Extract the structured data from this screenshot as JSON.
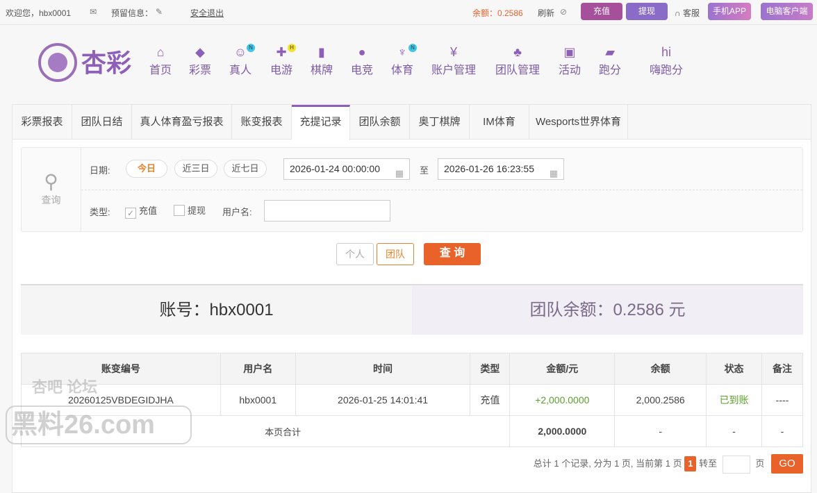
{
  "topbar": {
    "welcome": "欢迎您，hbx0001",
    "reserved_info": "预留信息：",
    "logout": "安全退出",
    "balance": "余额：0.2586",
    "refresh": "刷新",
    "deposit": "充值",
    "withdraw": "提现",
    "service": "客服",
    "mobile_app": "手机APP",
    "pc_client": "电脑客户端"
  },
  "brand": {
    "logo_text": "杏彩"
  },
  "nav": [
    {
      "label": "首页",
      "icon": "home-icon"
    },
    {
      "label": "彩票",
      "icon": "lottery-icon"
    },
    {
      "label": "真人",
      "icon": "live-dealer-icon",
      "badge": "N"
    },
    {
      "label": "电游",
      "icon": "gamepad-icon",
      "badge": "H"
    },
    {
      "label": "棋牌",
      "icon": "cards-icon"
    },
    {
      "label": "电竞",
      "icon": "esports-icon"
    },
    {
      "label": "体育",
      "icon": "trophy-icon",
      "badge": "N"
    },
    {
      "label": "账户管理",
      "icon": "yen-icon"
    },
    {
      "label": "团队管理",
      "icon": "team-icon"
    },
    {
      "label": "活动",
      "icon": "gift-icon"
    },
    {
      "label": "跑分",
      "icon": "rhino-icon"
    },
    {
      "label": "嗨跑分",
      "icon": "hi-icon"
    }
  ],
  "tabs": [
    "彩票报表",
    "团队日结",
    "真人体育盈亏报表",
    "账变报表",
    "充提记录",
    "团队余额",
    "奥丁棋牌",
    "IM体育",
    "Wesports世界体育"
  ],
  "active_tab": "充提记录",
  "filter": {
    "query_label": "查询",
    "date_label": "日期:",
    "quick": [
      "今日",
      "近三日",
      "近七日"
    ],
    "start": "2026-01-24 00:00:00",
    "to": "至",
    "end": "2026-01-26 16:23:55",
    "type_label": "类型:",
    "deposit": "充值",
    "deposit_checked": true,
    "withdraw": "提现",
    "withdraw_checked": false,
    "username_label": "用户名:",
    "username": ""
  },
  "scope": {
    "personal": "个人",
    "team": "团队",
    "search": "查 询"
  },
  "summary": {
    "account": "账号：hbx0001",
    "team_balance": "团队余额：0.2586 元"
  },
  "table": {
    "headers": [
      "账变编号",
      "用户名",
      "时间",
      "类型",
      "金额/元",
      "余额",
      "状态",
      "备注"
    ],
    "rows": [
      [
        "20260125VBDEGIDJHA",
        "hbx0001",
        "2026-01-25 14:01:41",
        "充值",
        "+2,000.0000",
        "2,000.2586",
        "已到账",
        "----"
      ]
    ],
    "total": {
      "label": "本页合计",
      "amount": "2,000.0000",
      "balance": "-",
      "status": "-",
      "note": "-"
    }
  },
  "pager": {
    "info": "总计 1 个记录, 分为 1 页, 当前第 1 页",
    "current": "1",
    "goto": "转至",
    "page_unit": "页",
    "go": "GO"
  },
  "watermark": {
    "line1": "杏吧 论坛",
    "line2": "黑料26.com"
  },
  "colors": {
    "accent": "#8e5fb8",
    "orange": "#e8622a",
    "green": "#5aa02c"
  }
}
